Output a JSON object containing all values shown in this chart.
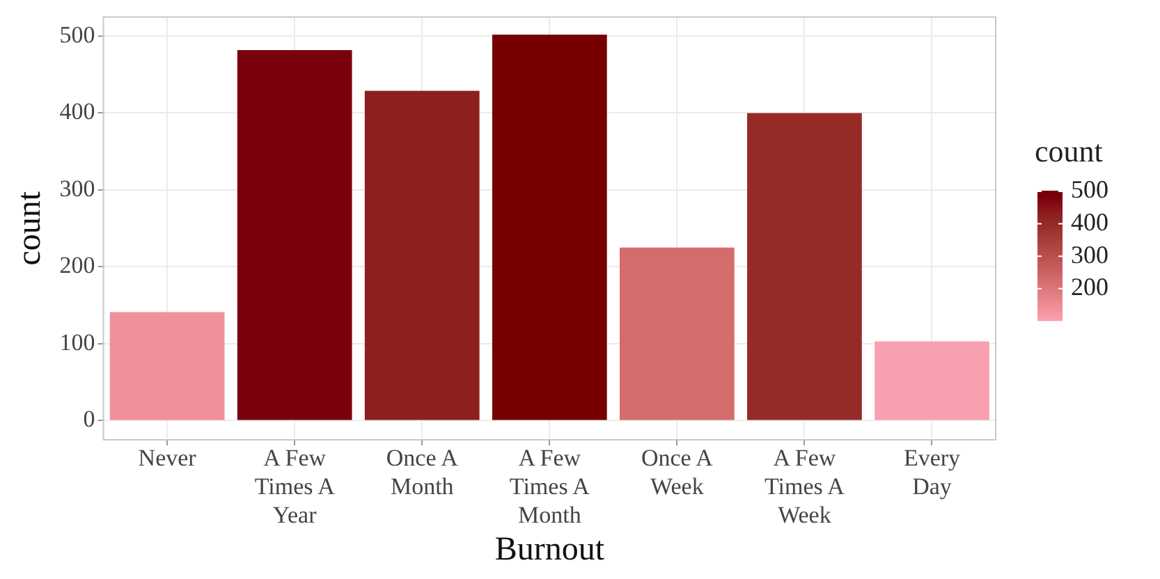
{
  "chart_data": {
    "type": "bar",
    "xlabel": "Burnout",
    "ylabel": "count",
    "clabel": "count",
    "categories": [
      "Never",
      "A Few Times A Year",
      "Once A Month",
      "A Few Times A Month",
      "Once A Week",
      "A Few Times A Week",
      "Every Day"
    ],
    "values": [
      141,
      482,
      429,
      502,
      225,
      400,
      103
    ],
    "colors": [
      "#f0909a",
      "#7a000e",
      "#8e1f1f",
      "#760000",
      "#d46c6c",
      "#962a26",
      "#f9a0b0"
    ],
    "ylim": [
      -25,
      525
    ],
    "yticks": [
      0,
      100,
      200,
      300,
      400,
      500
    ],
    "grid": true,
    "clim": [
      103,
      502
    ],
    "cticks": [
      200,
      300,
      400,
      500
    ]
  }
}
